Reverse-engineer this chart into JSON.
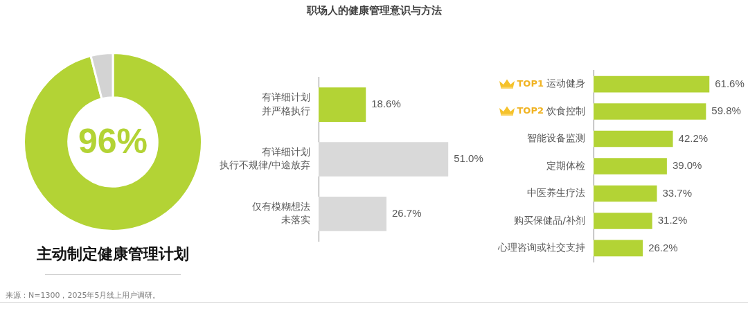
{
  "chart_data": [
    {
      "type": "donut",
      "title": "职场人的健康管理意识与方法",
      "categories": [
        "主动制定健康管理计划",
        null
      ],
      "values": [
        96,
        4
      ],
      "colors": [
        "#b3d335",
        "#d3d3d3"
      ],
      "value_labels": [
        "96%",
        null
      ],
      "annotations": [
        "来源：N=1300，2025年5月线上用户调研。"
      ]
    },
    {
      "type": "bar",
      "orientation": "horizontal",
      "categories": [
        "有详细计划并严格执行",
        "有详细计划执行不规律/中途放弃",
        "仅有模糊想法未落实"
      ],
      "values": [
        18.6,
        51.0,
        26.7
      ],
      "colors": [
        "#b3d335",
        "#d9d9d9",
        "#d9d9d9"
      ],
      "value_labels": [
        "18.6%",
        "51.0%",
        "26.7%"
      ],
      "tick_labels": "y"
    },
    {
      "type": "bar",
      "orientation": "horizontal",
      "categories": [
        "运动健身",
        "饮食控制",
        "智能设备监测",
        "定期体检",
        "中医养生疗法",
        "购买保健品/补剂",
        "心理咨询或社交支持"
      ],
      "values": [
        61.6,
        59.8,
        42.2,
        39.0,
        33.7,
        31.2,
        26.2
      ],
      "color": "#b3d335",
      "value_labels": [
        "61.6%",
        "59.8%",
        "42.2%",
        "39.0%",
        "33.7%",
        "31.2%",
        "26.2%"
      ],
      "tick_labels": "y",
      "annotations": [
        "TOP1",
        "TOP2"
      ]
    }
  ]
}
